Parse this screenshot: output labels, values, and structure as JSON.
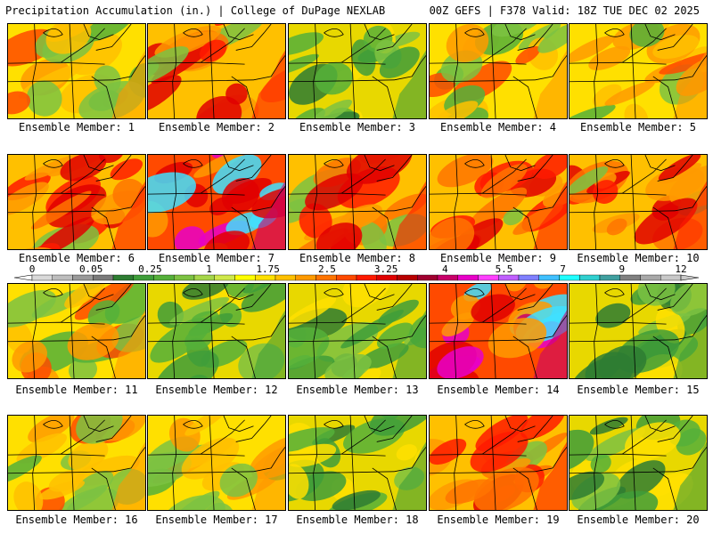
{
  "header": {
    "left": "Precipitation Accumulation (in.) | College of DuPage NEXLAB",
    "right": "00Z GEFS | F378 Valid: 18Z TUE DEC 02 2025"
  },
  "panels": [
    {
      "member": "Ensemble Member: 1",
      "intensity": "moderate"
    },
    {
      "member": "Ensemble Member: 2",
      "intensity": "high"
    },
    {
      "member": "Ensemble Member: 3",
      "intensity": "low"
    },
    {
      "member": "Ensemble Member: 4",
      "intensity": "moderate"
    },
    {
      "member": "Ensemble Member: 5",
      "intensity": "moderate"
    },
    {
      "member": "Ensemble Member: 6",
      "intensity": "high"
    },
    {
      "member": "Ensemble Member: 7",
      "intensity": "very-high"
    },
    {
      "member": "Ensemble Member: 8",
      "intensity": "high"
    },
    {
      "member": "Ensemble Member: 9",
      "intensity": "high"
    },
    {
      "member": "Ensemble Member: 10",
      "intensity": "high"
    },
    {
      "member": "Ensemble Member: 11",
      "intensity": "moderate"
    },
    {
      "member": "Ensemble Member: 12",
      "intensity": "low"
    },
    {
      "member": "Ensemble Member: 13",
      "intensity": "low"
    },
    {
      "member": "Ensemble Member: 14",
      "intensity": "very-high"
    },
    {
      "member": "Ensemble Member: 15",
      "intensity": "low"
    },
    {
      "member": "Ensemble Member: 16",
      "intensity": "moderate"
    },
    {
      "member": "Ensemble Member: 17",
      "intensity": "moderate"
    },
    {
      "member": "Ensemble Member: 18",
      "intensity": "low"
    },
    {
      "member": "Ensemble Member: 19",
      "intensity": "high"
    },
    {
      "member": "Ensemble Member: 20",
      "intensity": "low"
    }
  ],
  "legend": {
    "labels": [
      "0",
      "0.05",
      "0.25",
      "1",
      "1.75",
      "2.5",
      "3.25",
      "4",
      "5.5",
      "7",
      "9",
      "12"
    ],
    "colors": [
      "#d9d9d9",
      "#bdbdbd",
      "#9a9a9a",
      "#7a7a7a",
      "#2e7d32",
      "#3f9e3a",
      "#55b03a",
      "#7cc242",
      "#a5d64a",
      "#cfe84a",
      "#ffff00",
      "#ffe000",
      "#ffc000",
      "#ff9a00",
      "#ff7400",
      "#ff4a00",
      "#ff1a00",
      "#e00000",
      "#b80000",
      "#a00030",
      "#c8006a",
      "#e800c8",
      "#ff40ff",
      "#c060ff",
      "#8080ff",
      "#40c0ff",
      "#20ffff",
      "#30d0d0",
      "#40a0a0",
      "#808080",
      "#a8a8a8",
      "#c8c8c8"
    ]
  }
}
